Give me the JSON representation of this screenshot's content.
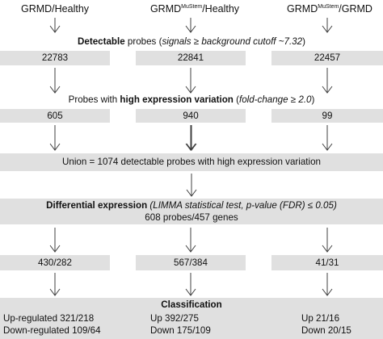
{
  "headers": [
    {
      "main": "GRMD/Healthy",
      "sup": "",
      "rest": ""
    },
    {
      "main": "GRMD",
      "sup": "MuStem",
      "rest": "/Healthy"
    },
    {
      "main": "GRMD",
      "sup": "MuStem",
      "rest": "/GRMD"
    }
  ],
  "detectable": {
    "bold": "Detectable",
    "plain": " probes (",
    "italic": "signals ≥ background cutoff ~7.32",
    "close": ")",
    "values": [
      "22783",
      "22841",
      "22457"
    ]
  },
  "high_variation": {
    "plain": "Probes with ",
    "bold": "high expression variation",
    "open": " (",
    "italic": "fold-change ≥ 2.0",
    "close": ")",
    "values": [
      "605",
      "940",
      "99"
    ]
  },
  "union": {
    "text": "Union = 1074 detectable probes with high expression variation"
  },
  "differential": {
    "bold": "Differential expression",
    "italic": " (LIMMA statistical test, p-value (FDR) ≤ 0.05)",
    "line2": "608 probes/457 genes"
  },
  "diff_values": [
    "430/282",
    "567/384",
    "41/31"
  ],
  "classification": {
    "title": "Classification",
    "col1": [
      "Up-regulated 321/218",
      "Down-regulated 109/64"
    ],
    "col2": [
      "Up 392/275",
      "Down 175/109"
    ],
    "col3": [
      "Up 21/16",
      "Down 20/15"
    ]
  },
  "colors": {
    "box": "#e0e0e0",
    "arrow": "#404040",
    "text": "#111111"
  }
}
